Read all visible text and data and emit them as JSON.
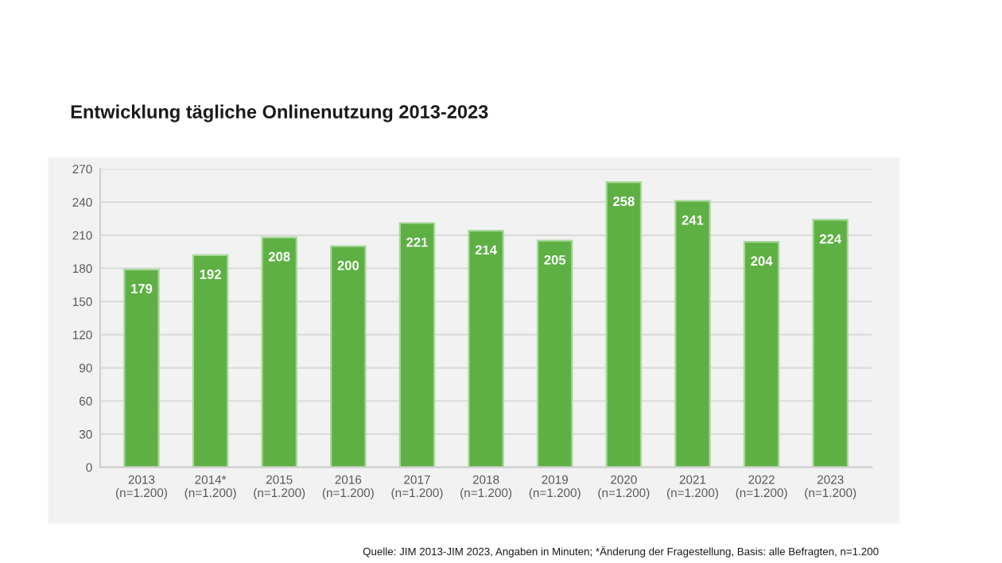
{
  "chart_data": {
    "type": "bar",
    "title": "Entwicklung tägliche Onlinenutzung 2013-2023",
    "categories": [
      "2013\n(n=1.200)",
      "2014*\n(n=1.200)",
      "2015\n(n=1.200)",
      "2016\n(n=1.200)",
      "2017\n(n=1.200)",
      "2018\n(n=1.200)",
      "2019\n(n=1.200)",
      "2020\n(n=1.200)",
      "2021\n(n=1.200)",
      "2022\n(n=1.200)",
      "2023\n(n=1.200)"
    ],
    "values": [
      179,
      192,
      208,
      200,
      221,
      214,
      205,
      258,
      241,
      204,
      224
    ],
    "color": "#5eb044",
    "ylim": [
      0,
      270
    ],
    "yticks": [
      0,
      30,
      60,
      90,
      120,
      150,
      180,
      210,
      240,
      270
    ],
    "grid": "y",
    "data_labels": true,
    "annotations": [
      "Quelle: JIM 2013-JIM 2023, Angaben in Minuten; *Änderung der Fragestellung, Basis: alle Befragten, n=1.200"
    ]
  }
}
